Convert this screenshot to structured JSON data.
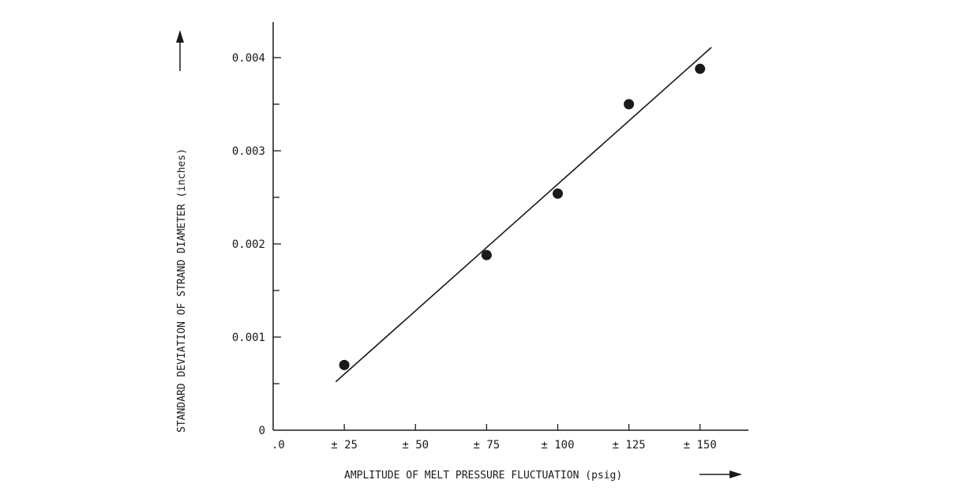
{
  "chart_data": {
    "type": "scatter",
    "title": "",
    "xlabel": "AMPLITUDE OF MELT PRESSURE FLUCTUATION (psig)",
    "ylabel": "STANDARD DEVIATION OF STRAND DIAMETER (inches)",
    "x_ticks": [
      {
        "value": 0,
        "label": ".0"
      },
      {
        "value": 25,
        "label": "± 25"
      },
      {
        "value": 50,
        "label": "± 50"
      },
      {
        "value": 75,
        "label": "± 75"
      },
      {
        "value": 100,
        "label": "± 100"
      },
      {
        "value": 125,
        "label": "± 125"
      },
      {
        "value": 150,
        "label": "± 150"
      }
    ],
    "y_ticks": [
      {
        "value": 0,
        "label": "0"
      },
      {
        "value": 0.001,
        "label": "0.001"
      },
      {
        "value": 0.002,
        "label": "0.002"
      },
      {
        "value": 0.003,
        "label": "0.003"
      },
      {
        "value": 0.004,
        "label": "0.004"
      }
    ],
    "xlim": [
      0,
      167
    ],
    "ylim": [
      0,
      0.0044
    ],
    "grid": false,
    "series": [
      {
        "points": [
          {
            "x": 25,
            "y": 0.0007
          },
          {
            "x": 75,
            "y": 0.00188
          },
          {
            "x": 100,
            "y": 0.00254
          },
          {
            "x": 125,
            "y": 0.0035
          },
          {
            "x": 150,
            "y": 0.00388
          }
        ]
      }
    ],
    "fit_line": {
      "x": [
        22,
        154
      ],
      "y": [
        0.00052,
        0.00411
      ]
    },
    "colors": {
      "ink": "#1a1a1a",
      "background": "#ffffff"
    }
  }
}
